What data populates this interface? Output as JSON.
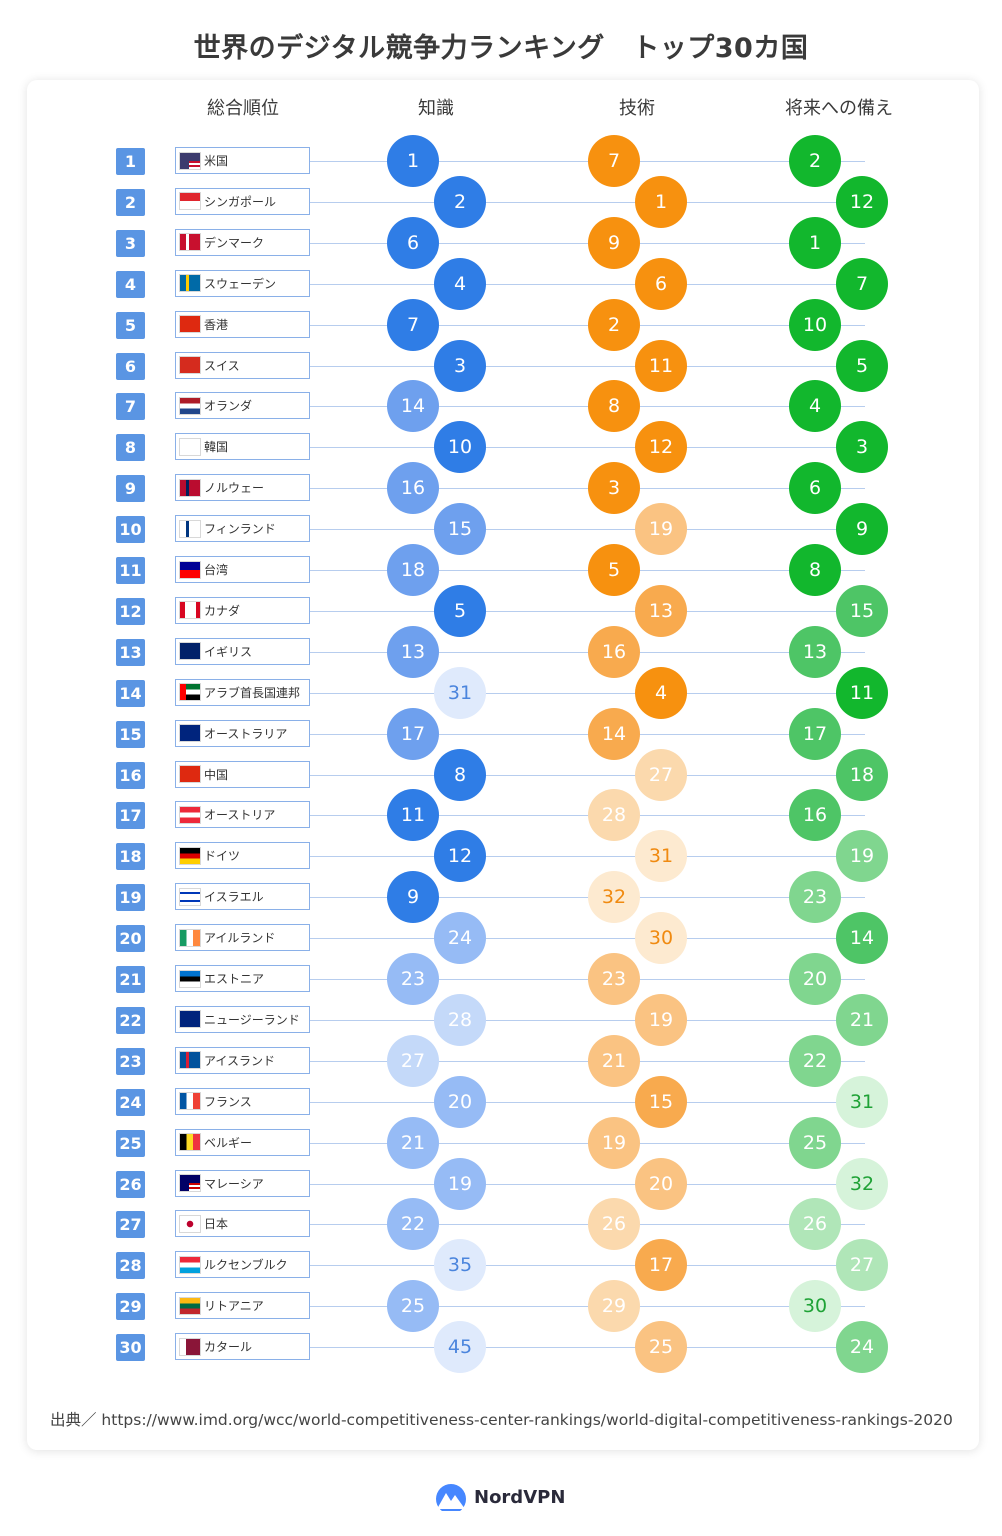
{
  "title": "世界のデジタル競争力ランキング　トップ30カ国",
  "columns": {
    "overall": "総合順位",
    "knowledge": "知識",
    "technology": "技術",
    "future": "将来への備え"
  },
  "source": "出典／ https://www.imd.org/wcc/world-competitiveness-center-rankings/world-digital-competitiveness-rankings-2020",
  "brand": "NordVPN",
  "colors": {
    "rank_badge": "#5a95e3",
    "knowledge": "#2f7de6",
    "technology": "#f7910f",
    "future": "#12b72d"
  },
  "chart_data": {
    "type": "table",
    "title": "世界のデジタル競争力ランキング　トップ30カ国",
    "rows": [
      {
        "rank": "1",
        "country": "米国",
        "knowledge": 1,
        "technology": 7,
        "future": 2
      },
      {
        "rank": "2",
        "country": "シンガポール",
        "knowledge": 2,
        "technology": 1,
        "future": 12
      },
      {
        "rank": "3",
        "country": "デンマーク",
        "knowledge": 6,
        "technology": 9,
        "future": 1
      },
      {
        "rank": "4",
        "country": "スウェーデン",
        "knowledge": 4,
        "technology": 6,
        "future": 7
      },
      {
        "rank": "5",
        "country": "香港",
        "knowledge": 7,
        "technology": 2,
        "future": 10
      },
      {
        "rank": "6",
        "country": "スイス",
        "knowledge": 3,
        "technology": 11,
        "future": 5
      },
      {
        "rank": "7",
        "country": "オランダ",
        "knowledge": 14,
        "technology": 8,
        "future": 4
      },
      {
        "rank": "8",
        "country": "韓国",
        "knowledge": 10,
        "technology": 12,
        "future": 3
      },
      {
        "rank": "9",
        "country": "ノルウェー",
        "knowledge": 16,
        "technology": 3,
        "future": 6
      },
      {
        "rank": "10",
        "country": "フィンランド",
        "knowledge": 15,
        "technology": 19,
        "future": 9
      },
      {
        "rank": "11",
        "country": "台湾",
        "knowledge": 18,
        "technology": 5,
        "future": 8
      },
      {
        "rank": "12",
        "country": "カナダ",
        "knowledge": 5,
        "technology": 13,
        "future": 15
      },
      {
        "rank": "13",
        "country": "イギリス",
        "knowledge": 13,
        "technology": 16,
        "future": 13
      },
      {
        "rank": "14",
        "country": "アラブ首長国連邦",
        "knowledge": 31,
        "technology": 4,
        "future": 11
      },
      {
        "rank": "15",
        "country": "オーストラリア",
        "knowledge": 17,
        "technology": 14,
        "future": 17
      },
      {
        "rank": "16",
        "country": "中国",
        "knowledge": 8,
        "technology": 27,
        "future": 18
      },
      {
        "rank": "17",
        "country": "オーストリア",
        "knowledge": 11,
        "technology": 28,
        "future": 16
      },
      {
        "rank": "18",
        "country": "ドイツ",
        "knowledge": 12,
        "technology": 31,
        "future": 19
      },
      {
        "rank": "19",
        "country": "イスラエル",
        "knowledge": 9,
        "technology": 32,
        "future": 23
      },
      {
        "rank": "20",
        "country": "アイルランド",
        "knowledge": 24,
        "technology": 30,
        "future": 14
      },
      {
        "rank": "21",
        "country": "エストニア",
        "knowledge": 23,
        "technology": 23,
        "future": 20
      },
      {
        "rank": "22",
        "country": "ニュージーランド",
        "knowledge": 28,
        "technology": 19,
        "future": 21
      },
      {
        "rank": "23",
        "country": "アイスランド",
        "knowledge": 27,
        "technology": 21,
        "future": 22
      },
      {
        "rank": "24",
        "country": "フランス",
        "knowledge": 20,
        "technology": 15,
        "future": 31
      },
      {
        "rank": "25",
        "country": "ベルギー",
        "knowledge": 21,
        "technology": 19,
        "future": 25
      },
      {
        "rank": "26",
        "country": "マレーシア",
        "knowledge": 19,
        "technology": 20,
        "future": 32
      },
      {
        "rank": "27",
        "country": "日本",
        "knowledge": 22,
        "technology": 26,
        "future": 26
      },
      {
        "rank": "28",
        "country": "ルクセンブルク",
        "knowledge": 35,
        "technology": 17,
        "future": 27
      },
      {
        "rank": "29",
        "country": "リトアニア",
        "knowledge": 25,
        "technology": 29,
        "future": 30
      },
      {
        "rank": "30",
        "country": "カタール",
        "knowledge": 45,
        "technology": 25,
        "future": 24
      }
    ]
  }
}
